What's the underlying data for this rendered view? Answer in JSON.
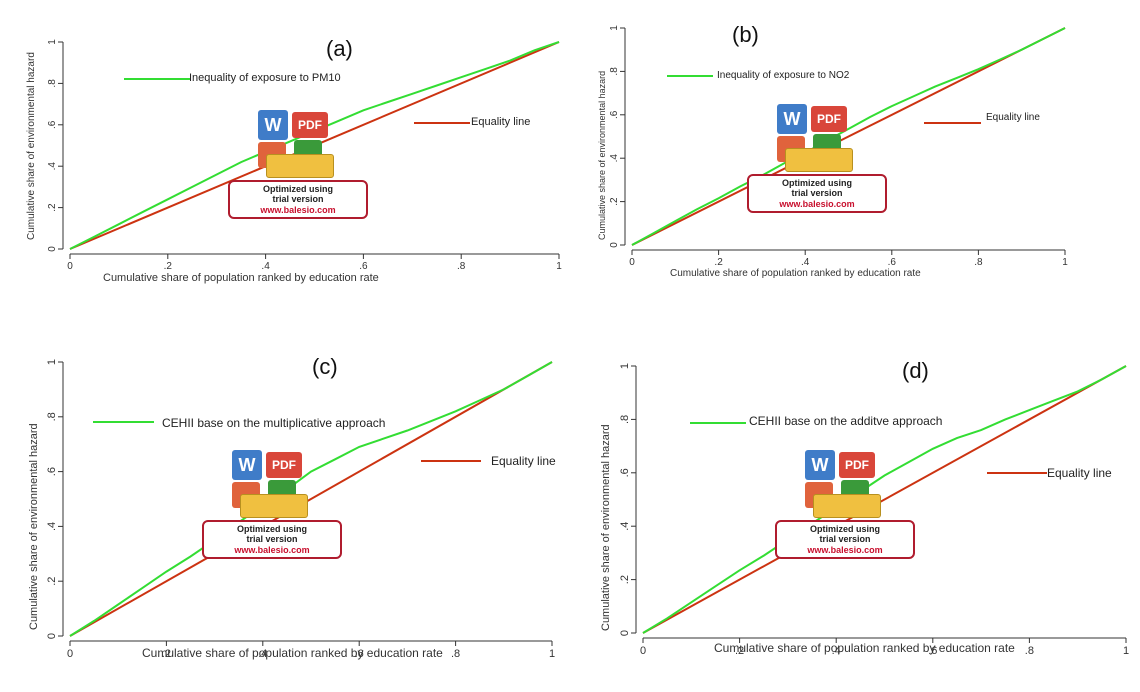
{
  "chart_data": [
    {
      "type": "line",
      "panel_label": "(a)",
      "xlabel": "Cumulative share of population ranked by education rate",
      "ylabel": "Cumulative share of environmental hazard",
      "xlim": [
        0,
        1
      ],
      "ylim": [
        0,
        1
      ],
      "x_ticks": [
        0,
        0.2,
        0.4,
        0.6,
        0.8,
        1
      ],
      "y_ticks": [
        0,
        0.2,
        0.4,
        0.6,
        0.8,
        1
      ],
      "x_tick_labels": [
        "0",
        ".2",
        ".4",
        ".6",
        ".8",
        "1"
      ],
      "y_tick_labels": [
        "0",
        ".2",
        ".4",
        ".6",
        ".8",
        "1"
      ],
      "grid": false,
      "series": [
        {
          "name": "Inequality of exposure to PM10",
          "color": "#33dd33",
          "x": [
            0,
            0.05,
            0.1,
            0.15,
            0.2,
            0.25,
            0.3,
            0.35,
            0.4,
            0.45,
            0.5,
            0.55,
            0.6,
            0.65,
            0.7,
            0.75,
            0.8,
            0.85,
            0.9,
            0.95,
            1
          ],
          "y": [
            0,
            0.06,
            0.12,
            0.18,
            0.24,
            0.3,
            0.36,
            0.42,
            0.47,
            0.52,
            0.57,
            0.62,
            0.67,
            0.71,
            0.75,
            0.79,
            0.83,
            0.87,
            0.91,
            0.96,
            1
          ]
        },
        {
          "name": "Equality line",
          "color": "#cc3311",
          "x": [
            0,
            1
          ],
          "y": [
            0,
            1
          ]
        }
      ]
    },
    {
      "type": "line",
      "panel_label": "(b)",
      "xlabel": "Cumulative share of population ranked by education rate",
      "ylabel": "Cumulative share of environmental hazard",
      "xlim": [
        0,
        1
      ],
      "ylim": [
        0,
        1
      ],
      "x_ticks": [
        0,
        0.2,
        0.4,
        0.6,
        0.8,
        1
      ],
      "y_ticks": [
        0,
        0.2,
        0.4,
        0.6,
        0.8,
        1
      ],
      "x_tick_labels": [
        "0",
        ".2",
        ".4",
        ".6",
        ".8",
        "1"
      ],
      "y_tick_labels": [
        "0",
        ".2",
        ".4",
        ".6",
        ".8",
        "1"
      ],
      "grid": false,
      "series": [
        {
          "name": "Inequality of exposure to NO2",
          "color": "#33dd33",
          "x": [
            0,
            0.05,
            0.1,
            0.15,
            0.2,
            0.25,
            0.3,
            0.35,
            0.4,
            0.45,
            0.5,
            0.55,
            0.6,
            0.65,
            0.7,
            0.75,
            0.8,
            0.85,
            0.9,
            0.95,
            1
          ],
          "y": [
            0,
            0.055,
            0.11,
            0.165,
            0.215,
            0.27,
            0.32,
            0.375,
            0.425,
            0.48,
            0.535,
            0.59,
            0.64,
            0.685,
            0.73,
            0.77,
            0.81,
            0.855,
            0.9,
            0.95,
            1
          ]
        },
        {
          "name": "Equality line",
          "color": "#cc3311",
          "x": [
            0,
            1
          ],
          "y": [
            0,
            1
          ]
        }
      ]
    },
    {
      "type": "line",
      "panel_label": "(c)",
      "xlabel": "Cumulative share of population ranked by education rate",
      "ylabel": "Cumulative share of environmental hazard",
      "xlim": [
        0,
        1
      ],
      "ylim": [
        0,
        1
      ],
      "x_ticks": [
        0,
        0.2,
        0.4,
        0.6,
        0.8,
        1
      ],
      "y_ticks": [
        0,
        0.2,
        0.4,
        0.6,
        0.8,
        1
      ],
      "x_tick_labels": [
        "0",
        ".2",
        ".4",
        ".6",
        ".8",
        "1"
      ],
      "y_tick_labels": [
        "0",
        ".2",
        ".4",
        ".6",
        ".8",
        "1"
      ],
      "grid": false,
      "series": [
        {
          "name": "CEHII base on the multiplicative approach",
          "color": "#33dd33",
          "x": [
            0,
            0.05,
            0.1,
            0.15,
            0.2,
            0.25,
            0.3,
            0.35,
            0.4,
            0.45,
            0.5,
            0.55,
            0.6,
            0.65,
            0.7,
            0.75,
            0.8,
            0.85,
            0.9,
            0.95,
            1
          ],
          "y": [
            0,
            0.055,
            0.115,
            0.175,
            0.235,
            0.29,
            0.35,
            0.415,
            0.475,
            0.535,
            0.6,
            0.645,
            0.69,
            0.72,
            0.75,
            0.785,
            0.82,
            0.86,
            0.9,
            0.95,
            1
          ]
        },
        {
          "name": "Equality line",
          "color": "#cc3311",
          "x": [
            0,
            1
          ],
          "y": [
            0,
            1
          ]
        }
      ]
    },
    {
      "type": "line",
      "panel_label": "(d)",
      "xlabel": "Cumulative share of population ranked by education rate",
      "ylabel": "Cumulative share of environmental hazard",
      "xlim": [
        0,
        1
      ],
      "ylim": [
        0,
        1
      ],
      "x_ticks": [
        0,
        0.2,
        0.4,
        0.6,
        0.8,
        1
      ],
      "y_ticks": [
        0,
        0.2,
        0.4,
        0.6,
        0.8,
        1
      ],
      "x_tick_labels": [
        "0",
        ".2",
        ".4",
        ".6",
        ".8",
        "1"
      ],
      "y_tick_labels": [
        "0",
        ".2",
        ".4",
        ".6",
        ".8",
        "1"
      ],
      "grid": false,
      "series": [
        {
          "name": "CEHII base on the additve approach",
          "color": "#33dd33",
          "x": [
            0,
            0.05,
            0.1,
            0.15,
            0.2,
            0.25,
            0.3,
            0.35,
            0.4,
            0.45,
            0.5,
            0.55,
            0.6,
            0.65,
            0.7,
            0.75,
            0.8,
            0.85,
            0.9,
            0.95,
            1
          ],
          "y": [
            0,
            0.055,
            0.115,
            0.175,
            0.235,
            0.29,
            0.35,
            0.41,
            0.47,
            0.53,
            0.59,
            0.64,
            0.69,
            0.73,
            0.76,
            0.8,
            0.835,
            0.87,
            0.905,
            0.95,
            1
          ]
        },
        {
          "name": "Equality line",
          "color": "#cc3311",
          "x": [
            0,
            1
          ],
          "y": [
            0,
            1
          ]
        }
      ]
    }
  ],
  "watermark": {
    "line1": "Optimized using",
    "line2": "trial version",
    "line3": "www.balesio.com",
    "icons": [
      "W",
      "PDF"
    ]
  }
}
